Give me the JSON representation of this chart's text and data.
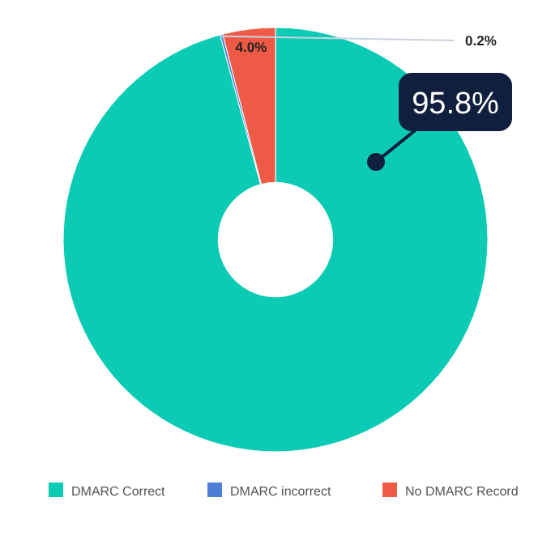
{
  "chart_data": {
    "type": "donut",
    "categories": [
      "DMARC Correct",
      "DMARC incorrect",
      "No DMARC Record"
    ],
    "values": [
      95.8,
      0.2,
      4.0
    ],
    "colors": [
      "#0bcbb5",
      "#4d7fd6",
      "#ef5a46"
    ],
    "value_labels": [
      "95.8%",
      "0.2%",
      "4.0%"
    ],
    "legend": "bottom"
  }
}
